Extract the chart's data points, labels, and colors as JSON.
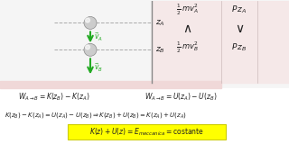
{
  "bg_top": "#f5f5f5",
  "bg_pink": "#f0d8d8",
  "bg_white": "#ffffff",
  "bg_yellow": "#ffff00",
  "line_color": "#555555",
  "green_color": "#22aa22",
  "pink_panel_color": "#f5e0e0",
  "text_color": "#222222",
  "line1_left": "W_{A\\rightarrow B} = K(z_B) - K(z_A)",
  "line1_right": "W_{A\\rightarrow B} = U(z_A) - U(z_B)",
  "line2": "K(z_B) - K(z_A) = U(z_A) - U(z_B) \\Rightarrow K(z_B) + U(z_B) = K(z_A) + U(z_A)",
  "line3": "K(z) + U(z) = E_{meccanica} = costante",
  "zA_label": "z_A",
  "zB_label": "z_B",
  "kinA": "\\frac{1}{2}\\,mv_A^2",
  "kinB": "\\frac{1}{2}\\,mv_B^2",
  "potA": "P\\,z_A",
  "potB": "P\\,z_B",
  "arrow_label": "\\Lambda",
  "arrow_label2": "\\vee"
}
